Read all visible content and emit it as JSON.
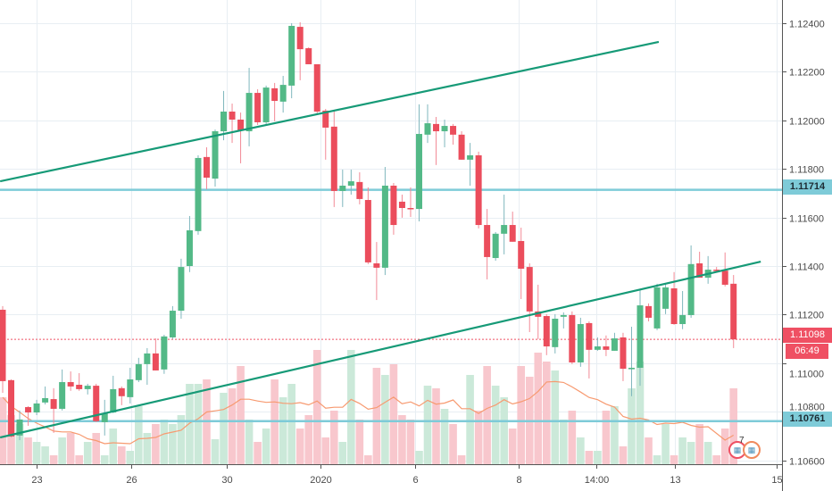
{
  "colors": {
    "up": "#53b987",
    "down": "#eb4d5c",
    "vol_up": "#cbe9d9",
    "vol_down": "#f8c7cd",
    "trend": "#169a77",
    "hline": "#7ecbd8",
    "ma": "#f79a70",
    "grid": "#e8eef3"
  },
  "price_axis": {
    "ticks": [
      "1.12400",
      "1.12200",
      "1.12000",
      "1.11800",
      "1.11600",
      "1.11400",
      "1.11200",
      "1.11000",
      "1.10800",
      "1.10600"
    ]
  },
  "time_axis": {
    "labels": [
      {
        "text": "23",
        "index": 4.0
      },
      {
        "text": "26",
        "index": 15.1
      },
      {
        "text": "30",
        "index": 26.4
      },
      {
        "text": "2020",
        "index": 37.4
      },
      {
        "text": "6",
        "index": 48.5
      },
      {
        "text": "8",
        "index": 60.7
      },
      {
        "text": "14:00",
        "index": 69.9
      },
      {
        "text": "13",
        "index": 79.1
      },
      {
        "text": "15",
        "index": 91.1
      }
    ]
  },
  "price_labels": {
    "resistance": "1.11714",
    "current": "1.11098",
    "countdown": "06:49",
    "support": "1.10761"
  },
  "levels": {
    "resistance": 1.11714,
    "support": 1.10761,
    "current": 1.11098
  },
  "trendlines": [
    {
      "from": [
        -0.3,
        1.11749
      ],
      "to": [
        77.2,
        1.12323
      ]
    },
    {
      "from": [
        -0.3,
        1.10694
      ],
      "to": [
        89.2,
        1.11418
      ]
    }
  ],
  "events": {
    "count": "7"
  },
  "chart_data": {
    "type": "candlestick",
    "ylim": [
      1.1052,
      1.125
    ],
    "candles": [
      [
        1.1122,
        1.11235,
        1.10878,
        1.10926
      ],
      [
        1.1093,
        1.10933,
        1.10694,
        1.10698
      ],
      [
        1.10702,
        1.10805,
        1.10683,
        1.10768
      ],
      [
        1.10819,
        1.10823,
        1.10742,
        1.10797
      ],
      [
        1.10797,
        1.10849,
        1.10786,
        1.10834
      ],
      [
        1.10838,
        1.10904,
        1.1083,
        1.10856
      ],
      [
        1.10852,
        1.10897,
        1.10713,
        1.10812
      ],
      [
        1.10812,
        1.10974,
        1.10805,
        1.10922
      ],
      [
        1.10922,
        1.10966,
        1.10886,
        1.10904
      ],
      [
        1.10911,
        1.10959,
        1.10886,
        1.10893
      ],
      [
        1.10893,
        1.10915,
        1.10871,
        1.10907
      ],
      [
        1.10907,
        1.10915,
        1.10757,
        1.10761
      ],
      [
        1.10757,
        1.10849,
        1.10702,
        1.10794
      ],
      [
        1.10797,
        1.10948,
        1.10794,
        1.10893
      ],
      [
        1.10897,
        1.10904,
        1.10827,
        1.10864
      ],
      [
        1.1086,
        1.10981,
        1.10834,
        1.10933
      ],
      [
        1.1093,
        1.11022,
        1.10922,
        1.10996
      ],
      [
        1.10996,
        1.11062,
        1.10911,
        1.1104
      ],
      [
        1.1104,
        1.11102,
        1.1097,
        1.1097
      ],
      [
        1.10974,
        1.11117,
        1.10956,
        1.1111
      ],
      [
        1.11106,
        1.11235,
        1.11099,
        1.11216
      ],
      [
        1.11216,
        1.1143,
        1.11183,
        1.11396
      ],
      [
        1.114,
        1.11606,
        1.11375,
        1.11547
      ],
      [
        1.11544,
        1.11856,
        1.11529,
        1.11845
      ],
      [
        1.11849,
        1.11889,
        1.11716,
        1.11764
      ],
      [
        1.1176,
        1.11962,
        1.11727,
        1.11955
      ],
      [
        1.11955,
        1.12121,
        1.11918,
        1.12036
      ],
      [
        1.12036,
        1.12069,
        1.11907,
        1.12003
      ],
      [
        1.12003,
        1.12032,
        1.11823,
        1.11959
      ],
      [
        1.11955,
        1.12216,
        1.11893,
        1.12113
      ],
      [
        1.12113,
        1.12128,
        1.11981,
        1.11992
      ],
      [
        1.11992,
        1.12143,
        1.11981,
        1.12135
      ],
      [
        1.12132,
        1.12154,
        1.11996,
        1.1208
      ],
      [
        1.12077,
        1.12183,
        1.12032,
        1.12146
      ],
      [
        1.12143,
        1.124,
        1.12091,
        1.12389
      ],
      [
        1.12385,
        1.12404,
        1.12165,
        1.12293
      ],
      [
        1.12297,
        1.12301,
        1.12231,
        1.12231
      ],
      [
        1.12231,
        1.12231,
        1.12025,
        1.12036
      ],
      [
        1.1204,
        1.12047,
        1.11838,
        1.1197
      ],
      [
        1.11974,
        1.1204,
        1.11643,
        1.11709
      ],
      [
        1.11709,
        1.11797,
        1.11643,
        1.11731
      ],
      [
        1.11731,
        1.11797,
        1.11694,
        1.11749
      ],
      [
        1.11746,
        1.11786,
        1.11654,
        1.11676
      ],
      [
        1.11672,
        1.11724,
        1.11408,
        1.11415
      ],
      [
        1.11411,
        1.11499,
        1.1126,
        1.11393
      ],
      [
        1.11393,
        1.11808,
        1.11363,
        1.11731
      ],
      [
        1.11731,
        1.11742,
        1.11529,
        1.11569
      ],
      [
        1.11665,
        1.11694,
        1.11599,
        1.11639
      ],
      [
        1.11639,
        1.11724,
        1.11602,
        1.11635
      ],
      [
        1.11635,
        1.12066,
        1.11584,
        1.11944
      ],
      [
        1.11941,
        1.12066,
        1.11907,
        1.11988
      ],
      [
        1.11985,
        1.12014,
        1.11816,
        1.11955
      ],
      [
        1.11955,
        1.12003,
        1.11889,
        1.11977
      ],
      [
        1.11977,
        1.11985,
        1.119,
        1.11941
      ],
      [
        1.11941,
        1.11955,
        1.11838,
        1.11838
      ],
      [
        1.11838,
        1.11907,
        1.11731,
        1.11856
      ],
      [
        1.11856,
        1.11871,
        1.11555,
        1.11569
      ],
      [
        1.11569,
        1.11635,
        1.11345,
        1.11437
      ],
      [
        1.11433,
        1.1154,
        1.11422,
        1.11533
      ],
      [
        1.11533,
        1.11694,
        1.11448,
        1.11569
      ],
      [
        1.11569,
        1.11624,
        1.115,
        1.115
      ],
      [
        1.11503,
        1.11558,
        1.11264,
        1.11389
      ],
      [
        1.11396,
        1.11411,
        1.11128,
        1.11213
      ],
      [
        1.11213,
        1.11323,
        1.11099,
        1.11191
      ],
      [
        1.11194,
        1.11202,
        1.11033,
        1.11069
      ],
      [
        1.11066,
        1.11202,
        1.1104,
        1.11183
      ],
      [
        1.11191,
        1.11209,
        1.11143,
        1.11198
      ],
      [
        1.11198,
        1.11213,
        1.10996,
        1.11003
      ],
      [
        1.11003,
        1.11187,
        1.10985,
        1.11161
      ],
      [
        1.11165,
        1.11172,
        1.10937,
        1.11055
      ],
      [
        1.11055,
        1.11106,
        1.11051,
        1.11069
      ],
      [
        1.11069,
        1.11114,
        1.11029,
        1.11055
      ],
      [
        1.11051,
        1.11125,
        1.11051,
        1.11102
      ],
      [
        1.11106,
        1.11125,
        1.10926,
        1.10977
      ],
      [
        1.10975,
        1.1115,
        1.10864,
        1.10981
      ],
      [
        1.10981,
        1.11301,
        1.10907,
        1.11238
      ],
      [
        1.11235,
        1.11246,
        1.11172,
        1.11187
      ],
      [
        1.11143,
        1.11327,
        1.11136,
        1.11312
      ],
      [
        1.11224,
        1.1133,
        1.11202,
        1.11312
      ],
      [
        1.11308,
        1.11375,
        1.11158,
        1.11161
      ],
      [
        1.11161,
        1.11297,
        1.1114,
        1.11198
      ],
      [
        1.11198,
        1.11485,
        1.11187,
        1.11408
      ],
      [
        1.11411,
        1.11459,
        1.11352,
        1.11352
      ],
      [
        1.11352,
        1.11441,
        1.11327,
        1.11385
      ],
      [
        1.11385,
        1.11396,
        1.11375,
        1.11381
      ],
      [
        1.11381,
        1.11456,
        1.11316,
        1.11323
      ],
      [
        1.11327,
        1.11363,
        1.11062,
        1.11098
      ]
    ],
    "volume": [
      75,
      55,
      45,
      30,
      25,
      20,
      10,
      30,
      35,
      10,
      25,
      35,
      10,
      40,
      20,
      15,
      65,
      35,
      45,
      50,
      45,
      55,
      90,
      90,
      95,
      28,
      80,
      85,
      110,
      50,
      25,
      40,
      95,
      75,
      90,
      40,
      55,
      128,
      30,
      60,
      25,
      128,
      50,
      10,
      108,
      100,
      112,
      55,
      50,
      15,
      88,
      85,
      62,
      45,
      10,
      100,
      60,
      110,
      88,
      75,
      40,
      110,
      98,
      125,
      115,
      105,
      50,
      60,
      30,
      15,
      15,
      60,
      65,
      20,
      85,
      115,
      30,
      10,
      45,
      10,
      30,
      25,
      45,
      25,
      10,
      40,
      85
    ]
  }
}
